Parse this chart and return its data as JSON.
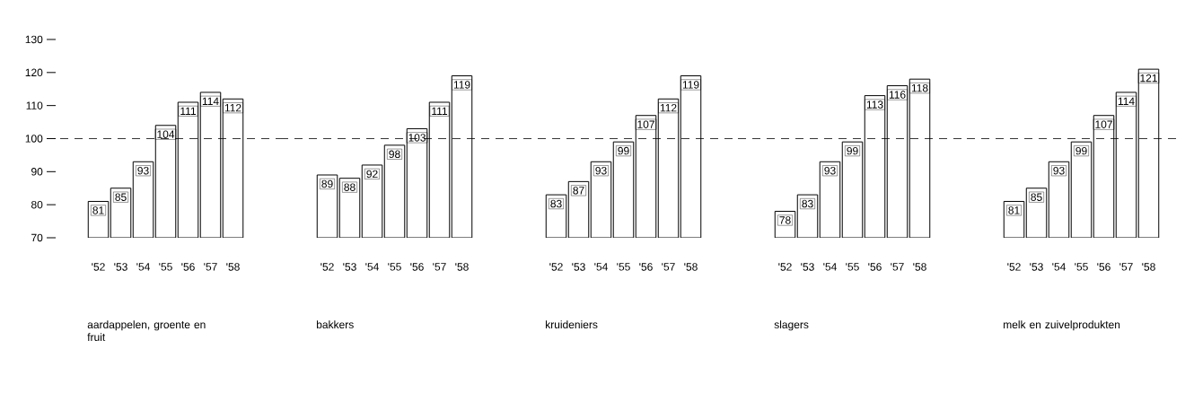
{
  "chart_data": [
    {
      "type": "bar",
      "xlabel": "aardappelen, groente en fruit",
      "categories": [
        "'52",
        "'53",
        "'54",
        "'55",
        "'56",
        "'57",
        "'58"
      ],
      "values": [
        81,
        85,
        93,
        104,
        111,
        114,
        112
      ],
      "color": "#ffffff",
      "ylim": [
        70,
        130
      ],
      "yticks": [
        70,
        80,
        90,
        100,
        110,
        120,
        130
      ],
      "ref_lines": [
        {
          "axis": "y",
          "value": 100,
          "line_style": "dashed"
        }
      ],
      "data_labels": true
    },
    {
      "type": "bar",
      "xlabel": "bakkers",
      "categories": [
        "'52",
        "'53",
        "'54",
        "'55",
        "'56",
        "'57",
        "'58"
      ],
      "values": [
        89,
        88,
        92,
        98,
        103,
        111,
        119
      ],
      "color": "#ffffff",
      "ylim": [
        70,
        130
      ],
      "ref_lines": [
        {
          "axis": "y",
          "value": 100,
          "line_style": "dashed"
        }
      ],
      "data_labels": true,
      "tick_labels": "x"
    },
    {
      "type": "bar",
      "xlabel": "kruideniers",
      "categories": [
        "'52",
        "'53",
        "'54",
        "'55",
        "'56",
        "'57",
        "'58"
      ],
      "values": [
        83,
        87,
        93,
        99,
        107,
        112,
        119
      ],
      "color": "#ffffff",
      "ylim": [
        70,
        130
      ],
      "ref_lines": [
        {
          "axis": "y",
          "value": 100,
          "line_style": "dashed"
        }
      ],
      "data_labels": true,
      "tick_labels": "x"
    },
    {
      "type": "bar",
      "xlabel": "slagers",
      "categories": [
        "'52",
        "'53",
        "'54",
        "'55",
        "'56",
        "'57",
        "'58"
      ],
      "values": [
        78,
        83,
        93,
        99,
        113,
        116,
        118
      ],
      "color": "#ffffff",
      "ylim": [
        70,
        130
      ],
      "ref_lines": [
        {
          "axis": "y",
          "value": 100,
          "line_style": "dashed"
        }
      ],
      "data_labels": true,
      "tick_labels": "x"
    },
    {
      "type": "bar",
      "xlabel": "melk en zuivelprodukten",
      "categories": [
        "'52",
        "'53",
        "'54",
        "'55",
        "'56",
        "'57",
        "'58"
      ],
      "values": [
        81,
        85,
        93,
        99,
        107,
        114,
        121
      ],
      "color": "#ffffff",
      "ylim": [
        70,
        130
      ],
      "ref_lines": [
        {
          "axis": "y",
          "value": 100,
          "line_style": "dashed"
        }
      ],
      "data_labels": true,
      "tick_labels": "x"
    }
  ]
}
